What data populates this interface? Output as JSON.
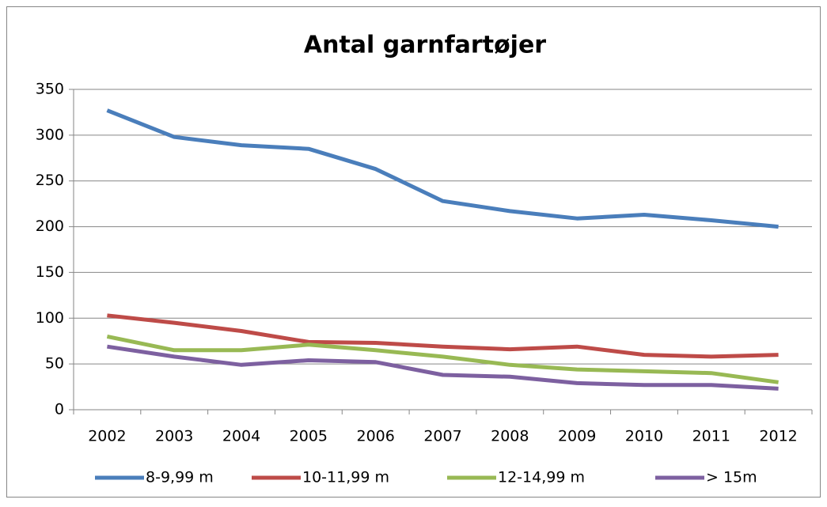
{
  "chart_data": {
    "type": "line",
    "title": "Antal garnfartøjer",
    "categories": [
      "2002",
      "2003",
      "2004",
      "2005",
      "2006",
      "2007",
      "2008",
      "2009",
      "2010",
      "2011",
      "2012"
    ],
    "series": [
      {
        "name": "8-9,99 m",
        "color": "#4a7ebb",
        "values": [
          327,
          298,
          289,
          285,
          263,
          228,
          217,
          209,
          213,
          207,
          200
        ]
      },
      {
        "name": "10-11,99 m",
        "color": "#be4b48",
        "values": [
          103,
          95,
          86,
          74,
          73,
          69,
          66,
          69,
          60,
          58,
          60
        ]
      },
      {
        "name": "12-14,99 m",
        "color": "#98b954",
        "values": [
          80,
          65,
          65,
          71,
          65,
          58,
          49,
          44,
          42,
          40,
          30
        ]
      },
      {
        "name": "> 15m",
        "color": "#7d60a0",
        "values": [
          69,
          58,
          49,
          54,
          52,
          38,
          36,
          29,
          27,
          27,
          23
        ]
      }
    ],
    "ylim": [
      0,
      350
    ],
    "yticks": [
      0,
      50,
      100,
      150,
      200,
      250,
      300,
      350
    ],
    "grid": true,
    "legend": "bottom"
  }
}
